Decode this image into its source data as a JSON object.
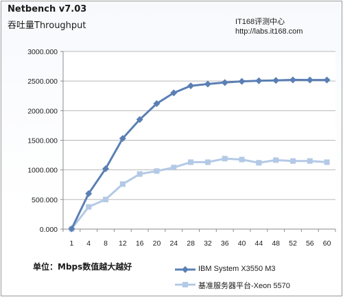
{
  "header": {
    "title": "Netbench v7.03",
    "subtitle": "吞吐量Throughput",
    "source_line1": "IT168评测中心",
    "source_line2": "http://labs.it168.com"
  },
  "footer": {
    "unit_note": "单位：Mbps数值越大越好"
  },
  "colors": {
    "series1": "#5a7fb4",
    "series2": "#b3c9e6"
  },
  "chart_data": {
    "type": "line",
    "title": "Netbench v7.03",
    "subtitle": "吞吐量Throughput",
    "xlabel": "",
    "ylabel": "",
    "categories": [
      "1",
      "4",
      "8",
      "12",
      "16",
      "20",
      "24",
      "28",
      "32",
      "36",
      "40",
      "44",
      "48",
      "52",
      "56",
      "60"
    ],
    "ylim": [
      0,
      3000
    ],
    "yticks": [
      "0.000",
      "500.000",
      "1000.000",
      "1500.000",
      "2000.000",
      "2500.000",
      "3000.000"
    ],
    "grid": "horizontal",
    "legend": "bottom-right",
    "series": [
      {
        "name": "IBM System X3550 M3",
        "marker": "diamond",
        "values": [
          5,
          600,
          1020,
          1530,
          1850,
          2120,
          2300,
          2420,
          2450,
          2475,
          2495,
          2505,
          2510,
          2520,
          2518,
          2518
        ]
      },
      {
        "name": "基准服务器平台-Xeon 5570",
        "marker": "square",
        "values": [
          5,
          375,
          500,
          760,
          930,
          980,
          1040,
          1130,
          1130,
          1190,
          1175,
          1120,
          1165,
          1150,
          1150,
          1130
        ]
      }
    ]
  }
}
